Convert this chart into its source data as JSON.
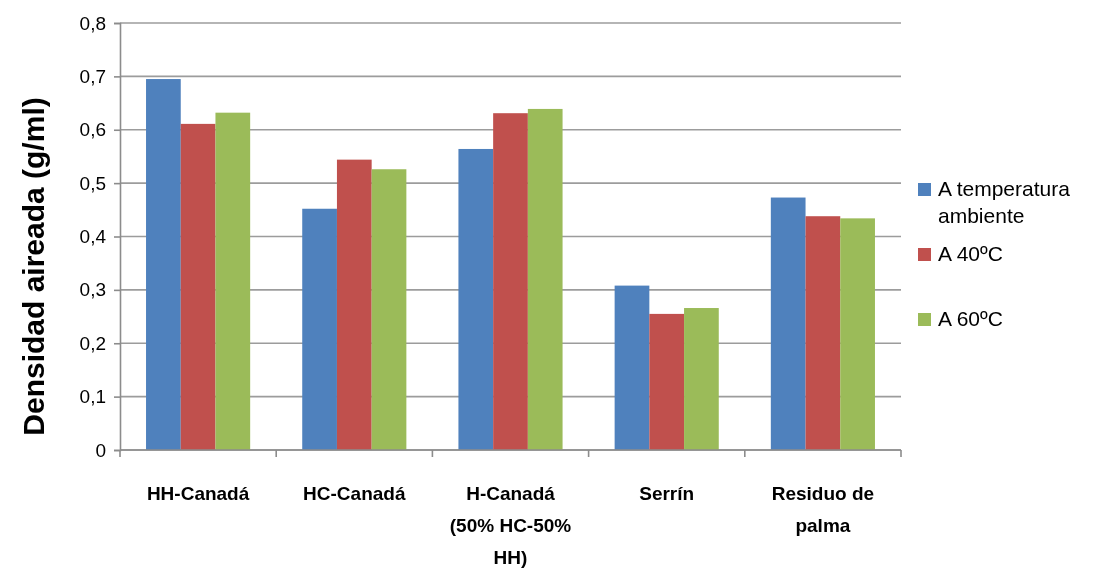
{
  "chart_data": {
    "type": "bar",
    "ylabel": "Densidad aireada (g/ml)",
    "categories": [
      "HH-Canadá",
      "HC-Canadá",
      "H-Canadá (50% HC-50% HH)",
      "Serrín",
      "Residuo de palma"
    ],
    "series": [
      {
        "name": "A temperatura ambiente",
        "color": "#4f81bd",
        "values": [
          0.695,
          0.452,
          0.564,
          0.308,
          0.473
        ]
      },
      {
        "name": "A 40ºC",
        "color": "#c0504d",
        "values": [
          0.611,
          0.544,
          0.631,
          0.255,
          0.438
        ]
      },
      {
        "name": "A 60ºC",
        "color": "#9bbb59",
        "values": [
          0.632,
          0.526,
          0.639,
          0.266,
          0.434
        ]
      }
    ],
    "ylim": [
      0,
      0.8
    ],
    "yticks": [
      0,
      {
        "value": 0.1,
        "label": "0,1"
      },
      {
        "value": 0.2,
        "label": "0,2"
      },
      {
        "value": 0.3,
        "label": "0,3"
      },
      {
        "value": 0.4,
        "label": "0,4"
      },
      {
        "value": 0.5,
        "label": "0,5"
      },
      {
        "value": 0.6,
        "label": "0,6"
      },
      {
        "value": 0.7,
        "label": "0,7"
      },
      {
        "value": 0.8,
        "label": "0,8"
      }
    ],
    "grid": "y",
    "legend": "right"
  }
}
